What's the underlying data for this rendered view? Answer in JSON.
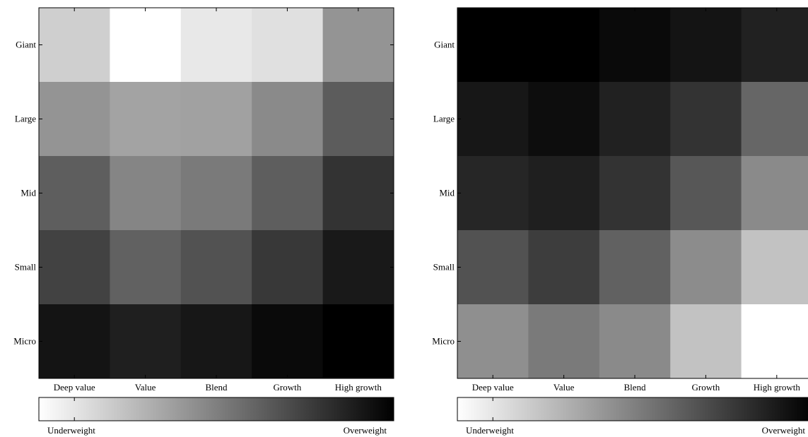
{
  "chart_data": [
    {
      "type": "heatmap",
      "rows": [
        "Giant",
        "Large",
        "Mid",
        "Small",
        "Micro"
      ],
      "columns": [
        "Deep value",
        "Value",
        "Blend",
        "Growth",
        "High growth"
      ],
      "values": [
        [
          0.19,
          0.0,
          0.09,
          0.12,
          0.42
        ],
        [
          0.42,
          0.36,
          0.37,
          0.46,
          0.64
        ],
        [
          0.63,
          0.48,
          0.52,
          0.63,
          0.8
        ],
        [
          0.74,
          0.62,
          0.68,
          0.78,
          0.9
        ],
        [
          0.92,
          0.88,
          0.91,
          0.96,
          1.0
        ]
      ],
      "colorbar": {
        "low_label": "Underweight",
        "high_label": "Overweight",
        "scale": "white-to-black"
      },
      "grid": false
    },
    {
      "type": "heatmap",
      "rows": [
        "Giant",
        "Large",
        "Mid",
        "Small",
        "Micro"
      ],
      "columns": [
        "Deep value",
        "Value",
        "Blend",
        "Growth",
        "High growth"
      ],
      "values": [
        [
          1.0,
          1.0,
          0.96,
          0.92,
          0.87
        ],
        [
          0.91,
          0.95,
          0.87,
          0.8,
          0.6
        ],
        [
          0.85,
          0.88,
          0.8,
          0.66,
          0.46
        ],
        [
          0.68,
          0.76,
          0.62,
          0.45,
          0.24
        ],
        [
          0.44,
          0.52,
          0.46,
          0.24,
          0.0
        ]
      ],
      "colorbar": {
        "low_label": "Underweight",
        "high_label": "Overweight",
        "scale": "white-to-black"
      },
      "grid": false
    }
  ]
}
